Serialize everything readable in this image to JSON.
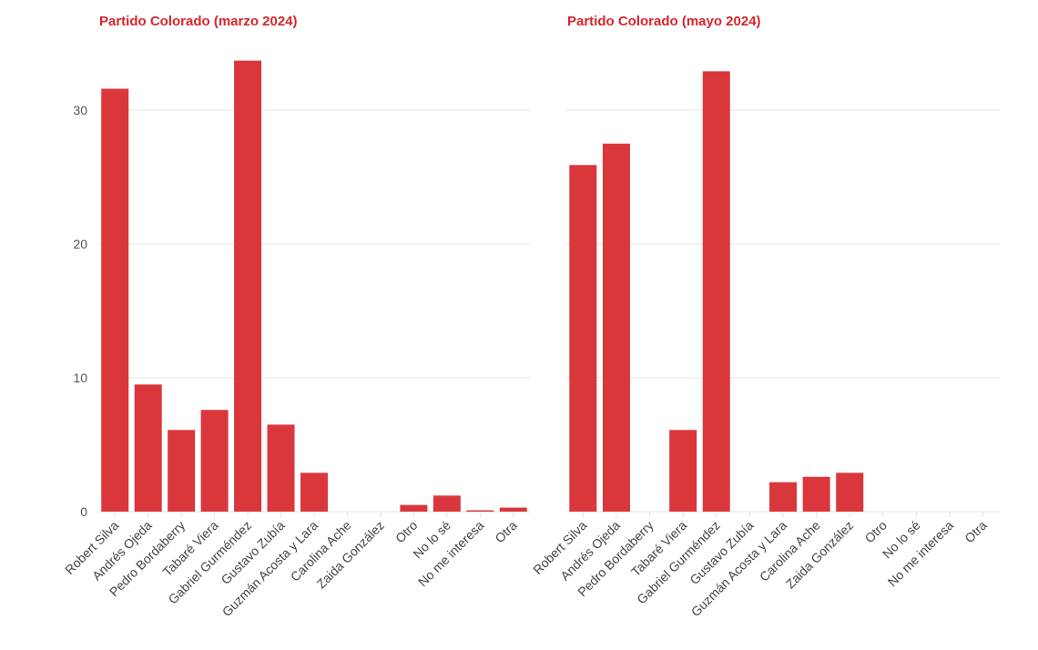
{
  "chart_data": [
    {
      "type": "bar",
      "title": "Partido Colorado (marzo 2024)",
      "categories": [
        "Robert Silva",
        "Andrés Ojeda",
        "Pedro Bordaberry",
        "Tabaré Viera",
        "Gabriel Gurméndez",
        "Gustavo Zubía",
        "Guzmán Acosta y Lara",
        "Carolina Ache",
        "Zaida González",
        "Otro",
        "No lo sé",
        "No me interesa",
        "Otra"
      ],
      "values": [
        31.6,
        9.5,
        6.1,
        7.6,
        33.7,
        6.5,
        2.9,
        0,
        0,
        0.5,
        1.2,
        0.1,
        0.3
      ],
      "yticks": [
        0,
        10,
        20,
        30
      ],
      "ylim": [
        0,
        35
      ],
      "grid": true,
      "color": "#d7262b"
    },
    {
      "type": "bar",
      "title": "Partido Colorado (mayo 2024)",
      "categories": [
        "Robert Silva",
        "Andrés Ojeda",
        "Pedro Bordaberry",
        "Tabaré Viera",
        "Gabriel Gurméndez",
        "Gustavo Zubía",
        "Guzmán Acosta y Lara",
        "Carolina Ache",
        "Zaida González",
        "Otro",
        "No lo sé",
        "No me interesa",
        "Otra"
      ],
      "values": [
        25.9,
        27.5,
        0,
        6.1,
        32.9,
        0,
        2.2,
        2.6,
        2.9,
        0,
        0,
        0,
        0
      ],
      "yticks": [
        0,
        10,
        20,
        30
      ],
      "ylim": [
        0,
        35
      ],
      "grid": true,
      "color": "#d7262b"
    }
  ]
}
